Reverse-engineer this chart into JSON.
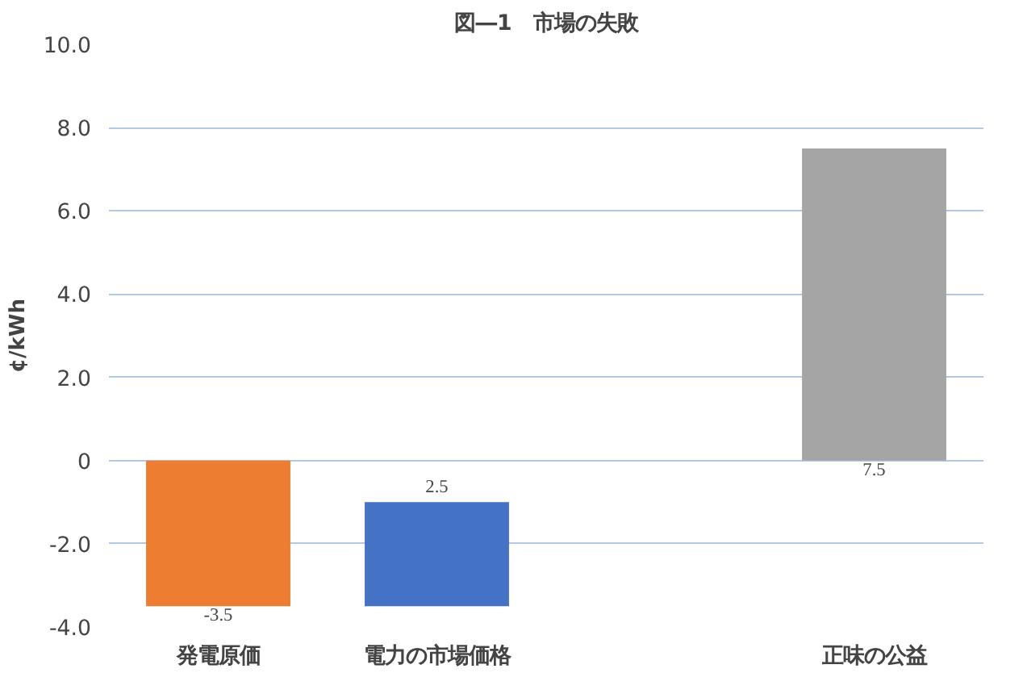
{
  "chart_data": {
    "type": "bar",
    "title": "図―1　市場の失敗",
    "ylabel": "¢/kWh",
    "categories": [
      "発電原価",
      "電力の市場価格",
      null,
      "正味の公益"
    ],
    "values": [
      -3.5,
      2.5,
      null,
      7.5
    ],
    "base": [
      0,
      -3.5,
      null,
      0
    ],
    "colors": [
      "#ed7d31",
      "#4472c4",
      null,
      "#a5a5a5"
    ],
    "value_labels": [
      "-3.5",
      "2.5",
      null,
      "7.5"
    ],
    "ylim": [
      -4,
      10
    ],
    "yticks": [
      {
        "value": 10,
        "label": "10.0"
      },
      {
        "value": 8,
        "label": "8.0"
      },
      {
        "value": 6,
        "label": "6.0"
      },
      {
        "value": 4,
        "label": "4.0"
      },
      {
        "value": 2,
        "label": "2.0"
      },
      0,
      {
        "value": -2,
        "label": "-2.0"
      },
      {
        "value": -4,
        "label": "-4.0"
      }
    ],
    "grid": "y"
  }
}
